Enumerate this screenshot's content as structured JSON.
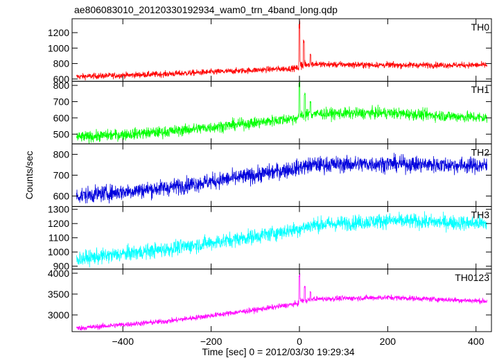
{
  "chart_data": {
    "type": "line",
    "title": "ae806083010_20120330192934_wam0_trn_4band_long.qdp",
    "xlabel": "Time [sec] 0 = 2012/03/30 19:29:34",
    "ylabel": "Counts/sec",
    "xlim": [
      -515,
      435
    ],
    "x_ticks": [
      -400,
      -200,
      0,
      200,
      400
    ],
    "x_tick_labels": [
      "−400",
      "−200",
      "0",
      "200",
      "400"
    ],
    "x_range": [
      -505,
      425
    ],
    "grid": false,
    "legend": "none",
    "panels": [
      {
        "name": "TH0",
        "color": "#ff0000",
        "ylim": [
          570,
          1380
        ],
        "y_ticks": [
          600,
          800,
          1000,
          1200
        ],
        "y_tick_labels": [
          "600",
          "800",
          "1000",
          "1200"
        ],
        "trend": [
          [
            -505,
            630
          ],
          [
            -300,
            665
          ],
          [
            -100,
            715
          ],
          [
            -5,
            740
          ],
          [
            30,
            790
          ],
          [
            200,
            780
          ],
          [
            425,
            780
          ]
        ],
        "noise": 28,
        "spikes": [
          [
            0,
            1330
          ],
          [
            10,
            1080
          ],
          [
            25,
            920
          ]
        ]
      },
      {
        "name": "TH1",
        "color": "#00ff00",
        "ylim": [
          440,
          825
        ],
        "y_ticks": [
          500,
          600,
          700,
          800
        ],
        "y_tick_labels": [
          "500",
          "600",
          "700",
          "800"
        ],
        "trend": [
          [
            -505,
            480
          ],
          [
            -300,
            515
          ],
          [
            -100,
            570
          ],
          [
            -5,
            600
          ],
          [
            30,
            625
          ],
          [
            200,
            630
          ],
          [
            425,
            600
          ]
        ],
        "noise": 25,
        "spikes": [
          [
            0,
            820
          ],
          [
            12,
            750
          ],
          [
            25,
            700
          ]
        ]
      },
      {
        "name": "TH2",
        "color": "#0000dd",
        "ylim": [
          550,
          850
        ],
        "y_ticks": [
          600,
          700,
          800
        ],
        "y_tick_labels": [
          "600",
          "700",
          "800"
        ],
        "trend": [
          [
            -505,
            600
          ],
          [
            -300,
            640
          ],
          [
            -100,
            700
          ],
          [
            -5,
            735
          ],
          [
            30,
            750
          ],
          [
            200,
            755
          ],
          [
            425,
            745
          ]
        ],
        "noise": 28,
        "spikes": []
      },
      {
        "name": "TH3",
        "color": "#00ffff",
        "ylim": [
          880,
          1320
        ],
        "y_ticks": [
          900,
          1000,
          1100,
          1200,
          1300
        ],
        "y_tick_labels": [
          "900",
          "1000",
          "1100",
          "1200",
          "1300"
        ],
        "trend": [
          [
            -505,
            950
          ],
          [
            -300,
            1020
          ],
          [
            -100,
            1110
          ],
          [
            -5,
            1160
          ],
          [
            30,
            1190
          ],
          [
            200,
            1220
          ],
          [
            425,
            1200
          ]
        ],
        "noise": 38,
        "spikes": []
      },
      {
        "name": "TH0123",
        "color": "#ff00ff",
        "ylim": [
          2600,
          4100
        ],
        "y_ticks": [
          3000,
          3500,
          4000
        ],
        "y_tick_labels": [
          "3000",
          "3500",
          "4000"
        ],
        "trend": [
          [
            -505,
            2680
          ],
          [
            -300,
            2850
          ],
          [
            -100,
            3120
          ],
          [
            -5,
            3270
          ],
          [
            30,
            3380
          ],
          [
            200,
            3420
          ],
          [
            425,
            3330
          ]
        ],
        "noise": 45,
        "spikes": [
          [
            0,
            4000
          ],
          [
            12,
            3700
          ],
          [
            25,
            3560
          ]
        ]
      }
    ]
  }
}
